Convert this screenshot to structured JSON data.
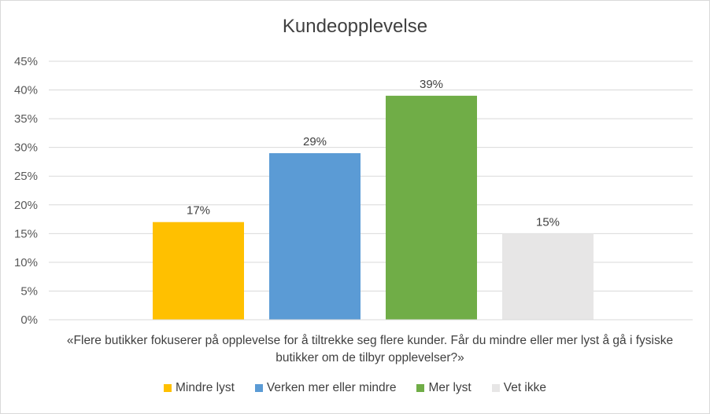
{
  "chart_data": {
    "type": "bar",
    "title": "Kundeopplevelse",
    "xlabel": "«Flere butikker fokuserer på opplevelse for å tiltrekke seg flere kunder. Får du mindre eller mer lyst å gå i fysiske butikker om de tilbyr opplevelser?»",
    "ylabel": "",
    "ylim": [
      0,
      45
    ],
    "yticks": [
      "0%",
      "5%",
      "10%",
      "15%",
      "20%",
      "25%",
      "30%",
      "35%",
      "40%",
      "45%"
    ],
    "grid": true,
    "legend_position": "bottom",
    "series": [
      {
        "name": "Mindre lyst",
        "value": 17,
        "label": "17%",
        "color": "#ffc000"
      },
      {
        "name": "Verken mer eller mindre",
        "value": 29,
        "label": "29%",
        "color": "#5b9bd5"
      },
      {
        "name": "Mer lyst",
        "value": 39,
        "label": "39%",
        "color": "#70ad47"
      },
      {
        "name": "Vet ikke",
        "value": 15,
        "label": "15%",
        "color": "#e7e6e6"
      }
    ]
  }
}
